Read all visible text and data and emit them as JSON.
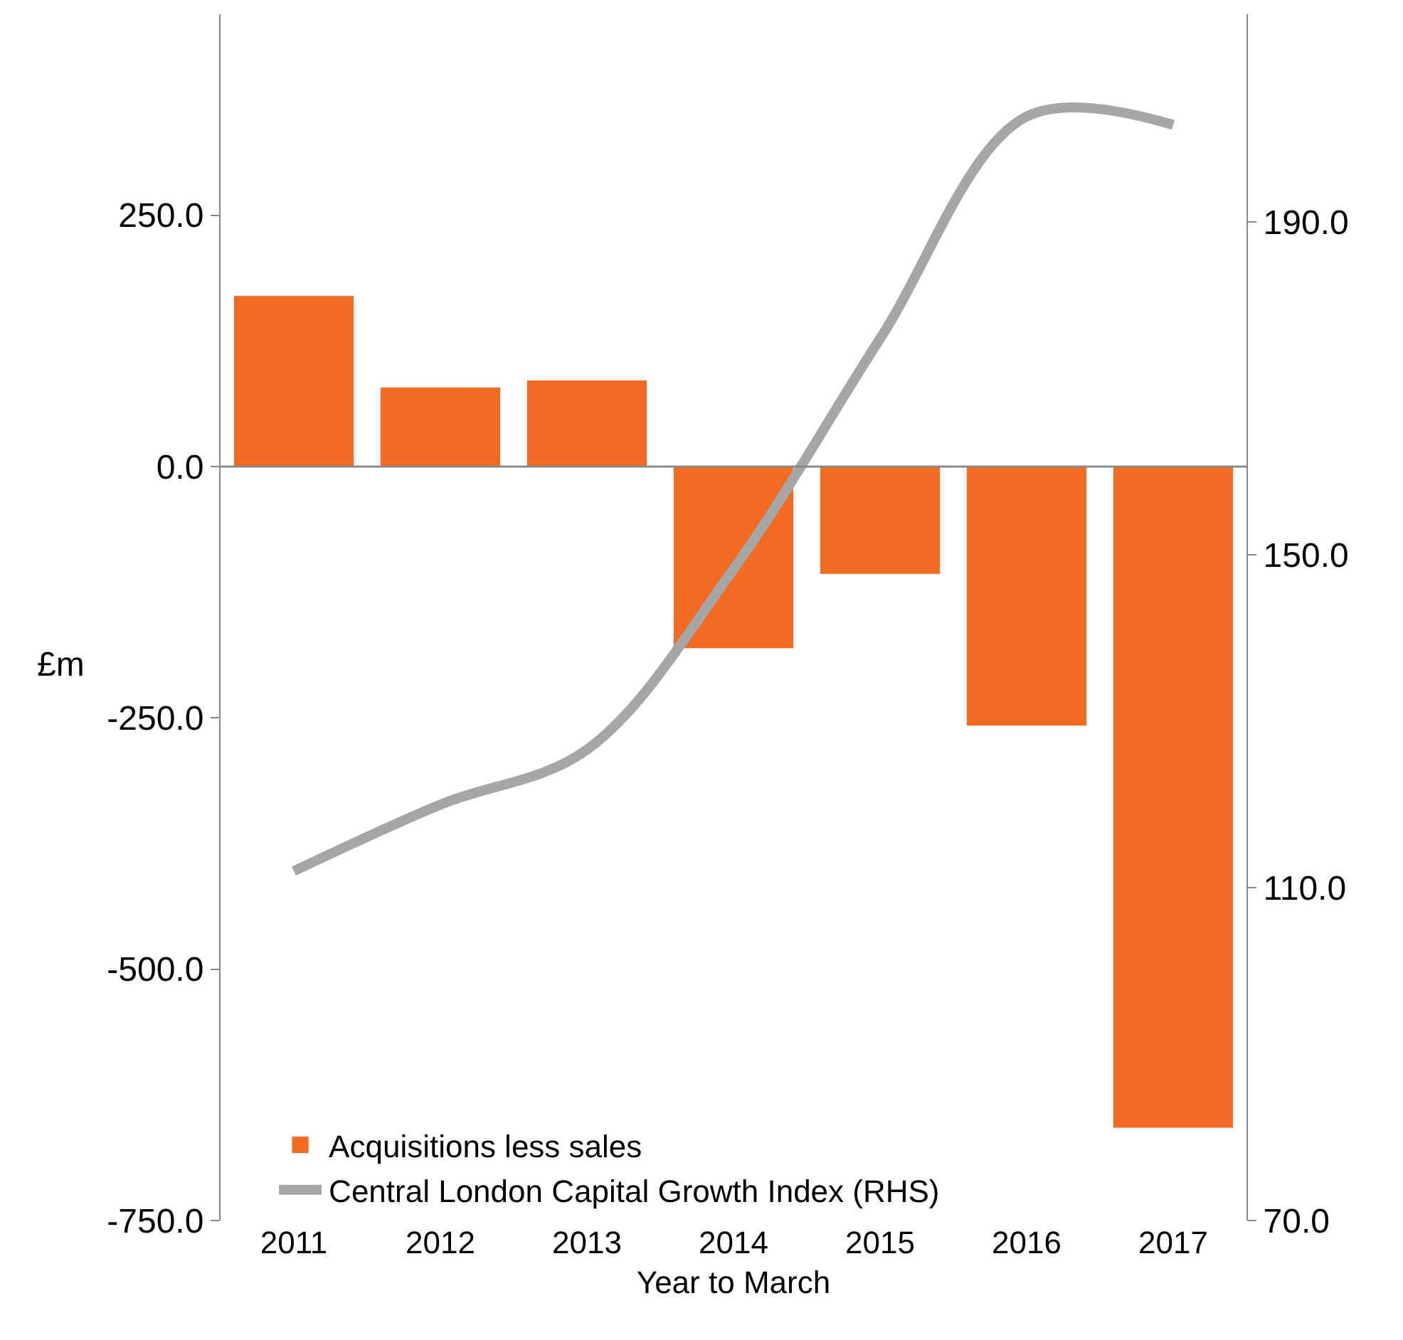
{
  "chart_data": {
    "type": "bar",
    "xlabel": "Year to March",
    "ylabel": "£m",
    "categories": [
      "2011",
      "2012",
      "2013",
      "2014",
      "2015",
      "2016",
      "2017"
    ],
    "series": [
      {
        "name": "Acquisitions less sales",
        "color": "#f26b21",
        "values": [
          170,
          79,
          86,
          -181,
          -107,
          -258,
          -658
        ]
      },
      {
        "name": "Central London Capital Growth Index (RHS)",
        "type": "line",
        "axis": "y2",
        "color": "#a6a6a8",
        "values": [
          112,
          120,
          126.6,
          148.3,
          176,
          202.7,
          201.7
        ]
      }
    ],
    "ylim": [
      -750,
      450
    ],
    "yticks": [
      {
        "value": -750,
        "label": "-750.0"
      },
      {
        "value": -500,
        "label": "-500.0"
      },
      {
        "value": -250,
        "label": "-250.0"
      },
      {
        "value": 0,
        "label": "0.0"
      },
      {
        "value": 250,
        "label": "250.0"
      }
    ],
    "y2lim": [
      70,
      215
    ],
    "y2ticks": [
      {
        "value": 70,
        "label": "70.0"
      },
      {
        "value": 110,
        "label": "110.0"
      },
      {
        "value": 150,
        "label": "150.0"
      },
      {
        "value": 190,
        "label": "190.0"
      }
    ],
    "ref_lines": [
      {
        "axis": "y",
        "value": 0,
        "color": "#888888",
        "line_style": "solid"
      }
    ],
    "legend": "bottom left",
    "marker": "none",
    "line_style": "solid"
  }
}
